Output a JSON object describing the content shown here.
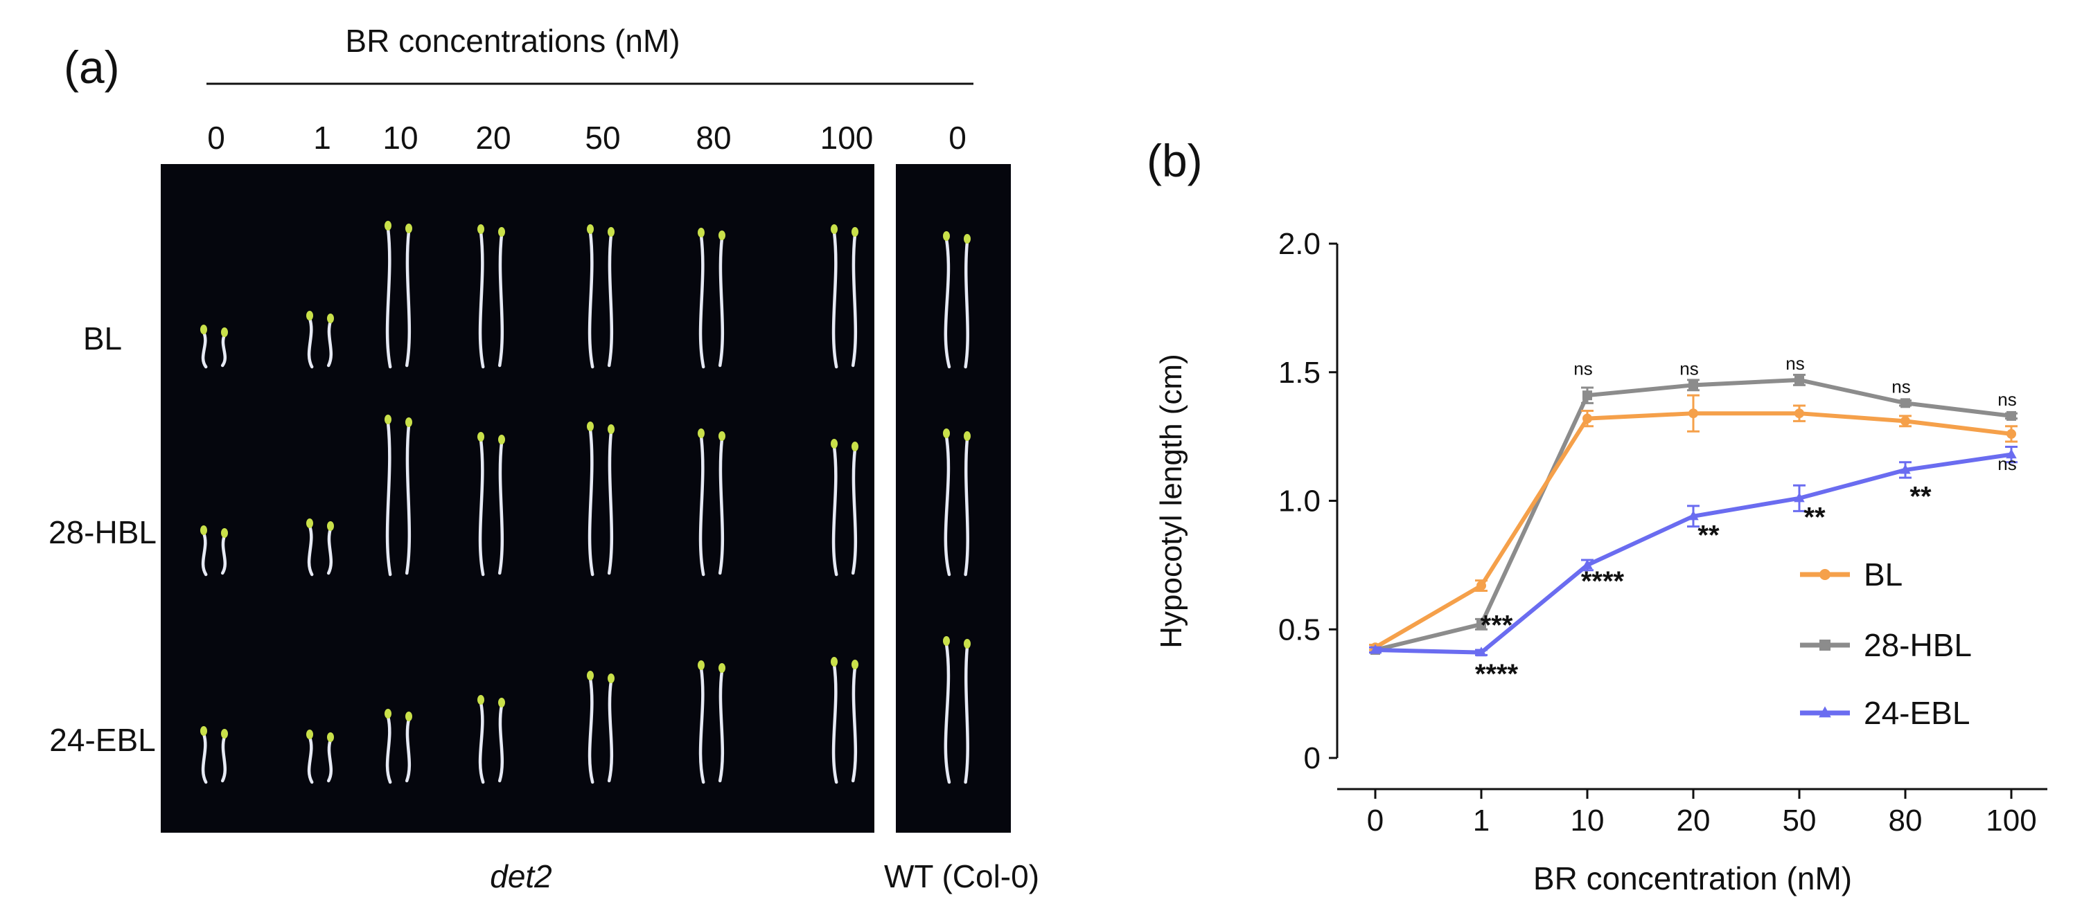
{
  "panel_a": {
    "label": "(a)",
    "header": "BR concentrations (nM)",
    "concentrations": [
      "0",
      "1",
      "10",
      "20",
      "50",
      "80",
      "100"
    ],
    "wt_concentration": "0",
    "row_labels": [
      "BL",
      "28-HBL",
      "24-EBL"
    ],
    "bottom_label_main": "det2",
    "bottom_label_wt": "WT (Col-0)",
    "background_color": "#05060d",
    "seedling_color": "#e6e9f4",
    "cotyledon_color": "#c9e04a"
  },
  "panel_b": {
    "label": "(b)"
  },
  "chart_data": {
    "type": "line",
    "xlabel": "BR concentration (nM)",
    "ylabel": "Hypocotyl length (cm)",
    "categories": [
      "0",
      "1",
      "10",
      "20",
      "50",
      "80",
      "100"
    ],
    "ylim": [
      0,
      2.0
    ],
    "yticks": [
      "0",
      "0.5",
      "1.0",
      "1.5",
      "2.0"
    ],
    "grid": false,
    "legend_position": "lower-right",
    "series": [
      {
        "name": "BL",
        "color": "#f5a04a",
        "marker": "circle",
        "values": [
          0.43,
          0.67,
          1.32,
          1.34,
          1.34,
          1.31,
          1.26
        ],
        "errors": [
          0.01,
          0.02,
          0.03,
          0.07,
          0.03,
          0.02,
          0.03
        ]
      },
      {
        "name": "28-HBL",
        "color": "#8c8c8c",
        "marker": "square",
        "values": [
          0.42,
          0.52,
          1.41,
          1.45,
          1.47,
          1.38,
          1.33
        ],
        "errors": [
          0.01,
          0.02,
          0.03,
          0.02,
          0.02,
          0.01,
          0.01
        ]
      },
      {
        "name": "24-EBL",
        "color": "#6a6cf0",
        "marker": "triangle",
        "values": [
          0.42,
          0.41,
          0.75,
          0.94,
          1.01,
          1.12,
          1.18
        ],
        "errors": [
          0.01,
          0.01,
          0.02,
          0.04,
          0.05,
          0.03,
          0.03
        ]
      }
    ],
    "annotations": [
      {
        "x": "1",
        "y": 0.54,
        "text": "***"
      },
      {
        "x": "1",
        "y": 0.35,
        "text": "****"
      },
      {
        "x": "10",
        "y": 0.71,
        "text": "****"
      },
      {
        "x": "10",
        "y": 1.49,
        "text": "ns"
      },
      {
        "x": "20",
        "y": 0.89,
        "text": "**"
      },
      {
        "x": "20",
        "y": 1.49,
        "text": "ns"
      },
      {
        "x": "50",
        "y": 0.96,
        "text": "**"
      },
      {
        "x": "50",
        "y": 1.51,
        "text": "ns"
      },
      {
        "x": "80",
        "y": 1.04,
        "text": "**"
      },
      {
        "x": "80",
        "y": 1.42,
        "text": "ns"
      },
      {
        "x": "100",
        "y": 1.37,
        "text": "ns"
      },
      {
        "x": "100",
        "y": 1.12,
        "text": "ns"
      }
    ]
  }
}
